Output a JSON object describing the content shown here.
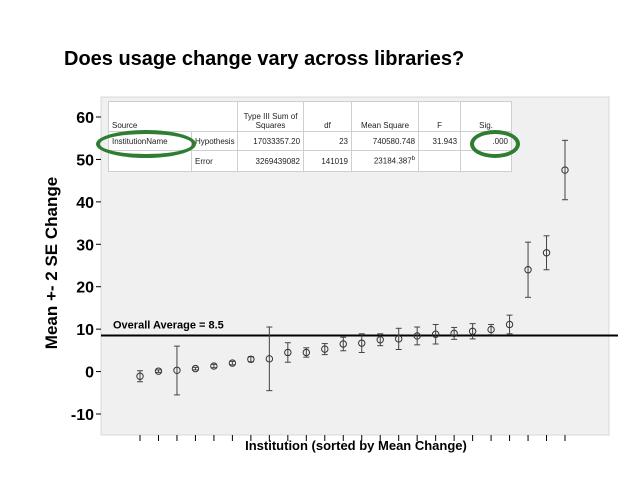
{
  "title": "Does usage change vary across libraries?",
  "chart_data": {
    "type": "scatter",
    "ylabel": "Mean +- 2 SE Change",
    "xlabel": "Institution (sorted by Mean Change)",
    "ylim": [
      -10,
      60
    ],
    "yticks": [
      "-10",
      "0",
      "10",
      "20",
      "30",
      "40",
      "50",
      "60"
    ],
    "grid": false,
    "reference_line": {
      "value": 8.5,
      "label": "Overall Average = 8.5"
    },
    "points": [
      {
        "mean": -1.1,
        "lo": -2.4,
        "hi": 0.2
      },
      {
        "mean": 0.1,
        "lo": -0.2,
        "hi": 0.4
      },
      {
        "mean": 0.3,
        "lo": -5.5,
        "hi": 6.0
      },
      {
        "mean": 0.7,
        "lo": 0.4,
        "hi": 1.0
      },
      {
        "mean": 1.3,
        "lo": 0.9,
        "hi": 1.7
      },
      {
        "mean": 2.0,
        "lo": 1.6,
        "hi": 2.4
      },
      {
        "mean": 2.9,
        "lo": 2.3,
        "hi": 3.5
      },
      {
        "mean": 3.0,
        "lo": -4.5,
        "hi": 10.5
      },
      {
        "mean": 4.5,
        "lo": 2.2,
        "hi": 6.8
      },
      {
        "mean": 4.5,
        "lo": 3.4,
        "hi": 5.6
      },
      {
        "mean": 5.3,
        "lo": 4.0,
        "hi": 6.6
      },
      {
        "mean": 6.5,
        "lo": 4.9,
        "hi": 8.1
      },
      {
        "mean": 6.7,
        "lo": 4.5,
        "hi": 8.9
      },
      {
        "mean": 7.5,
        "lo": 6.1,
        "hi": 8.9
      },
      {
        "mean": 7.7,
        "lo": 5.2,
        "hi": 10.2
      },
      {
        "mean": 8.4,
        "lo": 6.3,
        "hi": 10.5
      },
      {
        "mean": 8.8,
        "lo": 6.5,
        "hi": 11.1
      },
      {
        "mean": 9.0,
        "lo": 7.6,
        "hi": 10.4
      },
      {
        "mean": 9.5,
        "lo": 7.7,
        "hi": 11.3
      },
      {
        "mean": 9.9,
        "lo": 8.7,
        "hi": 11.1
      },
      {
        "mean": 11.1,
        "lo": 8.9,
        "hi": 13.3
      },
      {
        "mean": 24.0,
        "lo": 17.5,
        "hi": 30.5
      },
      {
        "mean": 28.0,
        "lo": 24.0,
        "hi": 32.0
      },
      {
        "mean": 47.5,
        "lo": 40.5,
        "hi": 54.5
      }
    ]
  },
  "table": {
    "headers": [
      "Source",
      "Type III Sum of Squares",
      "df",
      "Mean Square",
      "F",
      "Sig."
    ],
    "rows": [
      [
        "InstitutionName",
        "Hypothesis",
        "17033357.20",
        "23",
        "740580.748",
        "31.943",
        ".000"
      ],
      [
        "",
        "Error",
        "3269439082",
        "141019",
        "23184.387",
        "",
        ""
      ]
    ],
    "error_ms_superscript": "b"
  },
  "colors": {
    "highlight": "#2e7d32",
    "plot_bg": "#f0f0f0",
    "plot_border": "#d8d8d8"
  }
}
